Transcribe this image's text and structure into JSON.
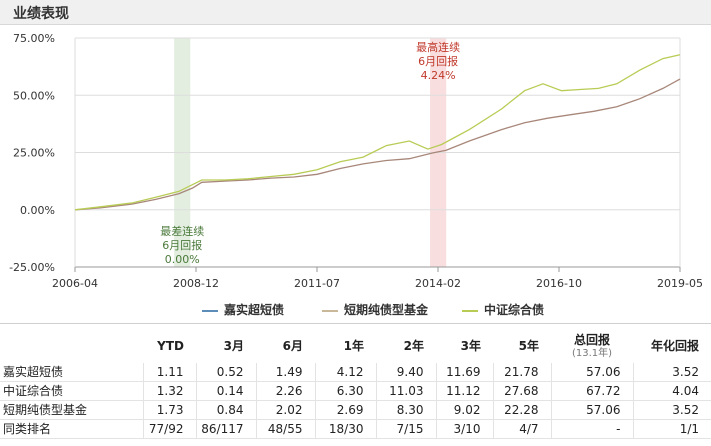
{
  "header": {
    "title": "业绩表现"
  },
  "chart_data": {
    "type": "line",
    "x_ticks": [
      "2006-04",
      "2008-12",
      "2011-07",
      "2014-02",
      "2016-10",
      "2019-05"
    ],
    "y_ticks": [
      "75.00%",
      "50.00%",
      "25.00%",
      "0.00%",
      "-25.00%"
    ],
    "ylim": [
      -25,
      75
    ],
    "xlim": [
      2006.25,
      2019.37
    ],
    "grid": true,
    "series": [
      {
        "name": "嘉实超短债",
        "color": "#5b8db8",
        "x": [],
        "values": []
      },
      {
        "name": "短期纯债型基金",
        "color": "#a8877a",
        "x": [
          2006.25,
          2006.8,
          2007.5,
          2008.0,
          2008.5,
          2008.8,
          2009.0,
          2009.5,
          2010.0,
          2010.5,
          2011.0,
          2011.5,
          2012.0,
          2012.5,
          2013.0,
          2013.5,
          2014.0,
          2014.3,
          2014.8,
          2015.5,
          2016.0,
          2016.5,
          2017.0,
          2017.5,
          2018.0,
          2018.5,
          2019.0,
          2019.37
        ],
        "values": [
          0,
          0.8,
          2.5,
          4.5,
          7,
          9.5,
          12,
          12.5,
          13,
          13.8,
          14.3,
          15.5,
          18,
          20,
          21.5,
          22.3,
          24.8,
          26,
          30,
          35,
          38,
          40,
          41.5,
          43,
          45,
          48.5,
          53,
          57.06
        ]
      },
      {
        "name": "中证综合债",
        "color": "#b8cc55",
        "x": [
          2006.25,
          2006.8,
          2007.5,
          2008.0,
          2008.5,
          2008.8,
          2009.0,
          2009.5,
          2010.0,
          2010.5,
          2011.0,
          2011.5,
          2012.0,
          2012.5,
          2013.0,
          2013.5,
          2013.9,
          2014.2,
          2014.8,
          2015.5,
          2016.0,
          2016.4,
          2016.8,
          2017.2,
          2017.6,
          2018.0,
          2018.5,
          2019.0,
          2019.37
        ],
        "values": [
          0,
          1.3,
          3,
          5.5,
          8,
          11,
          13,
          13,
          13.5,
          14.5,
          15.5,
          17.5,
          21,
          23,
          28,
          30,
          26.5,
          28.5,
          35,
          44,
          52,
          55,
          52,
          52.5,
          53,
          55,
          61,
          66,
          67.72
        ]
      }
    ],
    "annotations": [
      {
        "lines": [
          "最高连续",
          "6月回报",
          "4.24%"
        ],
        "color": "#c0392b",
        "band_color": "#f8dede",
        "from": 2013.95,
        "to": 2014.3,
        "position": "top"
      },
      {
        "lines": [
          "最差连续",
          "6月回报",
          "0.00%"
        ],
        "color": "#4a7a3a",
        "band_color": "#e3eee0",
        "from": 2008.4,
        "to": 2008.75,
        "position": "bottom"
      }
    ]
  },
  "legend": [
    {
      "label": "嘉实超短债",
      "color": "#5b8db8"
    },
    {
      "label": "短期纯债型基金",
      "color": "#c9b89a"
    },
    {
      "label": "中证综合债",
      "color": "#b8cc55"
    }
  ],
  "table": {
    "columns": [
      "",
      "YTD",
      "3月",
      "6月",
      "1年",
      "2年",
      "3年",
      "5年",
      "总回报",
      "年化回报"
    ],
    "total_sub": "(13.1年)",
    "rows": [
      [
        "嘉实超短债",
        "1.11",
        "0.52",
        "1.49",
        "4.12",
        "9.40",
        "11.69",
        "21.78",
        "57.06",
        "3.52"
      ],
      [
        "中证综合债",
        "1.32",
        "0.14",
        "2.26",
        "6.30",
        "11.03",
        "11.12",
        "27.68",
        "67.72",
        "4.04"
      ],
      [
        "短期纯债型基金",
        "1.73",
        "0.84",
        "2.02",
        "2.69",
        "8.30",
        "9.02",
        "22.28",
        "57.06",
        "3.52"
      ],
      [
        "同类排名",
        "77/92",
        "86/117",
        "48/55",
        "18/30",
        "7/15",
        "3/10",
        "4/7",
        "-",
        "1/1"
      ]
    ]
  }
}
